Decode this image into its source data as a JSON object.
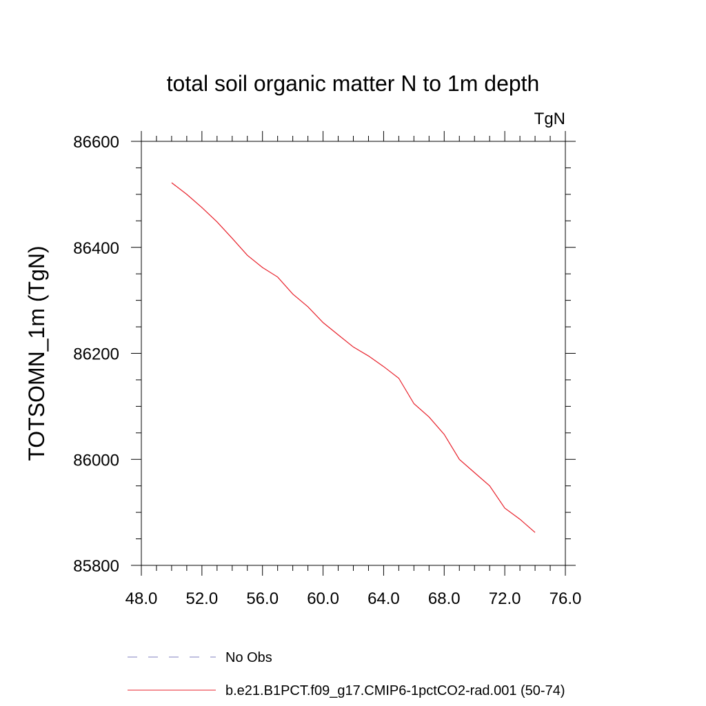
{
  "chart_data": {
    "type": "line",
    "title": "total soil organic matter N to 1m depth",
    "units": "TgN",
    "xlabel": "",
    "ylabel": "TOTSOMN_1m  (TgN)",
    "xlim": [
      48.0,
      76.0
    ],
    "ylim": [
      85800,
      86600
    ],
    "x_ticks": [
      "48.0",
      "52.0",
      "56.0",
      "60.0",
      "64.0",
      "68.0",
      "72.0",
      "76.0"
    ],
    "y_ticks": [
      "85800",
      "86000",
      "86200",
      "86400",
      "86600"
    ],
    "grid": false,
    "legend_position": "bottom",
    "series": [
      {
        "name": "No Obs",
        "color": "#7f7fbf",
        "dash": "dashed",
        "x": [],
        "y": []
      },
      {
        "name": "b.e21.B1PCT.f09_g17.CMIP6-1pctCO2-rad.001 (50-74)",
        "color": "#e8212b",
        "dash": "solid",
        "x": [
          50,
          51,
          52,
          53,
          54,
          55,
          56,
          57,
          58,
          59,
          60,
          61,
          62,
          63,
          64,
          65,
          66,
          67,
          68,
          69,
          70,
          71,
          72,
          73,
          74
        ],
        "y": [
          86522,
          86500,
          86475,
          86448,
          86417,
          86385,
          86362,
          86344,
          86312,
          86288,
          86258,
          86235,
          86212,
          86195,
          86175,
          86153,
          86105,
          86080,
          86047,
          86000,
          85975,
          85950,
          85908,
          85887,
          85862
        ]
      }
    ]
  }
}
